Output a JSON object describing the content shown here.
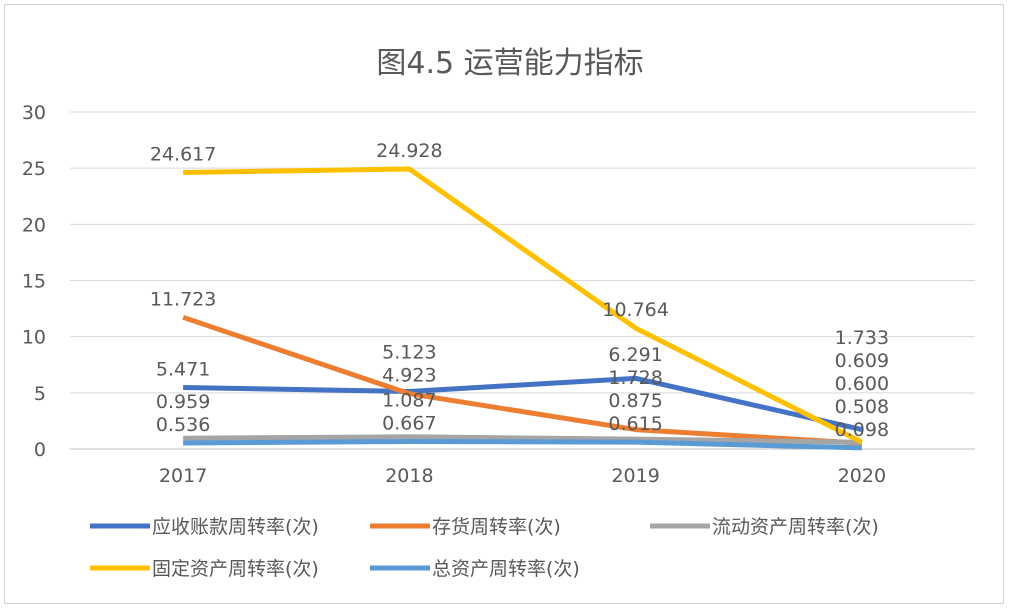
{
  "chart_data": {
    "type": "line",
    "title": "图4.5 运营能力指标",
    "categories": [
      "2017",
      "2018",
      "2019",
      "2020"
    ],
    "ylim": [
      0,
      30
    ],
    "yticks": [
      0,
      5,
      10,
      15,
      20,
      25,
      30
    ],
    "grid": true,
    "legend_position": "bottom",
    "series": [
      {
        "name": "应收账款周转率(次)",
        "color": "#4472C4",
        "values": [
          5.471,
          5.123,
          6.291,
          1.733
        ],
        "labels": [
          "5.471",
          "5.123",
          "6.291",
          "1.733"
        ]
      },
      {
        "name": "存货周转率(次)",
        "color": "#ED7D31",
        "values": [
          11.723,
          4.923,
          1.728,
          0.508
        ],
        "labels": [
          "11.723",
          "4.923",
          "1.728",
          "0.508"
        ]
      },
      {
        "name": "流动资产周转率(次)",
        "color": "#A5A5A5",
        "values": [
          0.959,
          1.087,
          0.875,
          0.6
        ],
        "labels": [
          "0.959",
          "1.087",
          "0.875",
          "0.600"
        ]
      },
      {
        "name": "固定资产周转率(次)",
        "color": "#FFC000",
        "values": [
          24.617,
          24.928,
          10.764,
          0.609
        ],
        "labels": [
          "24.617",
          "24.928",
          "10.764",
          "0.609"
        ]
      },
      {
        "name": "总资产周转率(次)",
        "color": "#5B9BD5",
        "values": [
          0.536,
          0.667,
          0.615,
          0.098
        ],
        "labels": [
          "0.536",
          "0.667",
          "0.615",
          "0.098"
        ]
      }
    ]
  }
}
